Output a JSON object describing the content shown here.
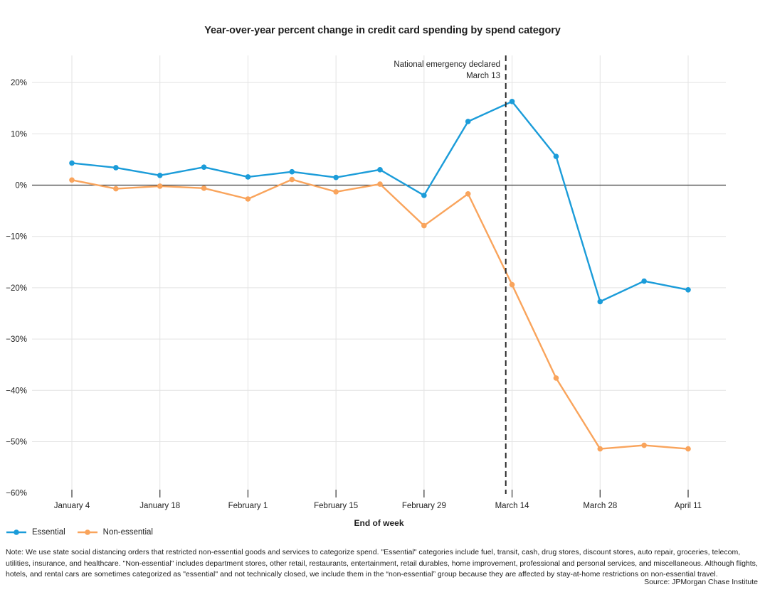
{
  "title": "Year-over-year percent change in credit card spending by spend category",
  "annotation": {
    "line1": "National emergency declared",
    "line2": "March 13"
  },
  "x_axis": {
    "label": "End of week",
    "tick_labels": [
      "January 4",
      "January 18",
      "February 1",
      "February 15",
      "February 29",
      "March 14",
      "March 28",
      "April 11"
    ]
  },
  "y_axis": {
    "tick_labels": [
      "20%",
      "10%",
      "0%",
      "−10%",
      "−20%",
      "−30%",
      "−40%",
      "−50%",
      "−60%"
    ],
    "tick_values": [
      20,
      10,
      0,
      -10,
      -20,
      -30,
      -40,
      -50,
      -60
    ]
  },
  "legend": {
    "items": [
      {
        "label": "Essential",
        "color": "#1B9CD9"
      },
      {
        "label": "Non-essential",
        "color": "#F9A45C"
      }
    ]
  },
  "note": "Note: We use state social distancing orders that restricted non-essential goods and services to categorize spend. \"Essential\" categories include fuel, transit, cash, drug stores, discount stores, auto repair, groceries, telecom, utilities, insurance, and healthcare. \"Non-essential\" includes department stores, other retail, restaurants, entertainment, retail durables, home improvement, professional and personal services, and miscellaneous. Although flights, hotels, and rental cars are sometimes categorized as \"essential\" and not technically closed, we include them in the “non-essential” group because they are affected by stay-at-home restrictions on non-essential travel.",
  "source": "Source: JPMorgan Chase Institute",
  "colors": {
    "essential": "#1B9CD9",
    "non_essential": "#F9A45C",
    "gridline": "#E3E3E3",
    "zero_line": "#3C3C3C",
    "dashed_line": "#2B2B2B"
  },
  "chart_data": {
    "type": "line",
    "title": "Year-over-year percent change in credit card spending by spend category",
    "xlabel": "End of week",
    "ylabel": "",
    "x": [
      "January 4",
      "January 11",
      "January 18",
      "January 25",
      "February 1",
      "February 8",
      "February 15",
      "February 22",
      "February 29",
      "March 7",
      "March 14",
      "March 21",
      "March 28",
      "April 4",
      "April 11"
    ],
    "series": [
      {
        "name": "Essential",
        "color": "#1B9CD9",
        "values": [
          4.3,
          3.4,
          1.9,
          3.5,
          1.6,
          2.6,
          1.5,
          3.0,
          -2.0,
          12.4,
          16.3,
          5.6,
          -22.7,
          -18.7,
          -20.4
        ]
      },
      {
        "name": "Non-essential",
        "color": "#F9A45C",
        "values": [
          1.0,
          -0.7,
          -0.2,
          -0.6,
          -2.7,
          1.1,
          -1.3,
          0.2,
          -7.9,
          -1.7,
          -19.4,
          -37.6,
          -51.4,
          -50.7,
          -51.4
        ]
      }
    ],
    "ylim": [
      -60,
      25
    ],
    "yticks": [
      20,
      10,
      0,
      -10,
      -20,
      -30,
      -40,
      -50,
      -60
    ],
    "x_tick_indices": [
      0,
      2,
      4,
      6,
      8,
      10,
      12,
      14
    ],
    "annotation": {
      "text": [
        "National emergency declared",
        "March 13"
      ],
      "x_index": 9.857
    },
    "grid": true,
    "legend_position": "bottom-left"
  }
}
